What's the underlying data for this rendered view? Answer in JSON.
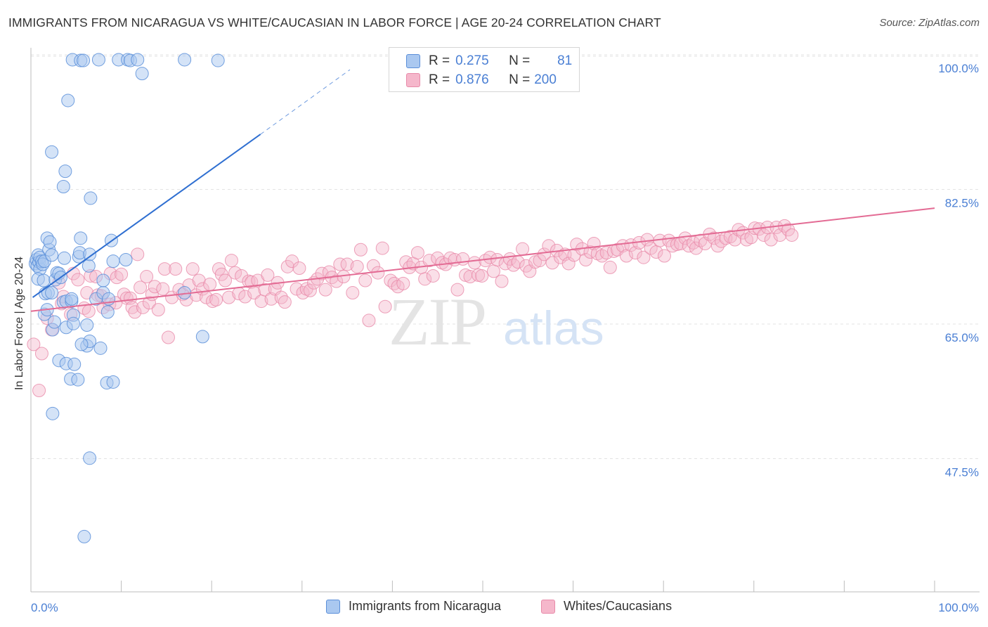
{
  "title": "IMMIGRANTS FROM NICARAGUA VS WHITE/CAUCASIAN IN LABOR FORCE | AGE 20-24 CORRELATION CHART",
  "source": "Source: ZipAtlas.com",
  "watermark": {
    "zip": "ZIP",
    "atlas": "atlas"
  },
  "legend_top": [
    {
      "r_label": "R =",
      "r_value": "0.275",
      "n_label": "N =",
      "n_value": "81"
    },
    {
      "r_label": "R =",
      "r_value": "0.876",
      "n_label": "N =",
      "n_value": "200"
    }
  ],
  "legend_bottom": [
    "Immigrants from Nicaragua",
    "Whites/Caucasians"
  ],
  "colors": {
    "blue_fill": "#aac8f0",
    "blue_stroke": "#5b8fd9",
    "blue_line": "#2f6fd1",
    "pink_fill": "#f5b7cb",
    "pink_stroke": "#e88aa9",
    "pink_line": "#e36b94",
    "tick_text": "#4a7fd4",
    "grid": "#e3e3e3"
  },
  "chart_data": {
    "type": "scatter",
    "title": "IMMIGRANTS FROM NICARAGUA VS WHITE/CAUCASIAN IN LABOR FORCE | AGE 20-24 CORRELATION CHART",
    "xlabel": "",
    "ylabel": "In Labor Force | Age 20-24",
    "xlim": [
      0,
      100
    ],
    "ylim": [
      30,
      102
    ],
    "x_ticks": [
      "0.0%",
      "100.0%"
    ],
    "y_ticks": [
      {
        "value": 100,
        "label": "100.0%"
      },
      {
        "value": 82.5,
        "label": "82.5%"
      },
      {
        "value": 65,
        "label": "65.0%"
      },
      {
        "value": 47.5,
        "label": "47.5%"
      }
    ],
    "grid": true,
    "series": [
      {
        "name": "Immigrants from Nicaragua",
        "r": 0.275,
        "n": 81,
        "trend": {
          "x0": 0.2,
          "y0": 70.2,
          "x1": 25.4,
          "y1": 91.4,
          "dash_to_x": 35.3,
          "dash_to_y": 99.8
        },
        "points": [
          [
            0.5,
            74.6
          ],
          [
            0.6,
            75.1
          ],
          [
            0.7,
            74.3
          ],
          [
            0.8,
            75.7
          ],
          [
            0.9,
            74.8
          ],
          [
            1.0,
            73.9
          ],
          [
            1.0,
            75.4
          ],
          [
            1.2,
            74.9
          ],
          [
            1.3,
            74.5
          ],
          [
            1.5,
            74.9
          ],
          [
            0.8,
            72.6
          ],
          [
            1.4,
            72.4
          ],
          [
            1.6,
            70.7
          ],
          [
            1.9,
            70.8
          ],
          [
            1.5,
            68.0
          ],
          [
            1.8,
            68.6
          ],
          [
            2.4,
            66.0
          ],
          [
            2.6,
            67.0
          ],
          [
            2.3,
            70.8
          ],
          [
            2.7,
            72.5
          ],
          [
            2.9,
            73.4
          ],
          [
            3.1,
            73.3
          ],
          [
            3.3,
            72.8
          ],
          [
            3.6,
            69.6
          ],
          [
            3.9,
            69.7
          ],
          [
            4.5,
            69.7
          ],
          [
            4.7,
            67.9
          ],
          [
            4.5,
            70.0
          ],
          [
            3.9,
            66.3
          ],
          [
            4.7,
            66.8
          ],
          [
            2.0,
            76.4
          ],
          [
            2.3,
            75.7
          ],
          [
            3.7,
            75.3
          ],
          [
            5.3,
            75.5
          ],
          [
            6.4,
            74.3
          ],
          [
            5.4,
            76.0
          ],
          [
            1.8,
            77.9
          ],
          [
            2.1,
            77.4
          ],
          [
            5.5,
            77.9
          ],
          [
            6.5,
            75.8
          ],
          [
            8.9,
            77.6
          ],
          [
            9.1,
            74.9
          ],
          [
            10.5,
            75.1
          ],
          [
            7.2,
            70.0
          ],
          [
            8.0,
            70.8
          ],
          [
            8.0,
            72.4
          ],
          [
            8.5,
            68.3
          ],
          [
            8.6,
            70.0
          ],
          [
            6.2,
            66.6
          ],
          [
            6.2,
            63.9
          ],
          [
            6.5,
            64.5
          ],
          [
            7.7,
            63.6
          ],
          [
            5.6,
            64.1
          ],
          [
            3.1,
            62.0
          ],
          [
            3.9,
            61.6
          ],
          [
            4.8,
            61.5
          ],
          [
            4.4,
            59.6
          ],
          [
            5.2,
            59.5
          ],
          [
            8.4,
            59.1
          ],
          [
            9.1,
            59.2
          ],
          [
            2.4,
            55.1
          ],
          [
            6.5,
            49.3
          ],
          [
            5.9,
            39.1
          ],
          [
            19.0,
            65.1
          ],
          [
            17.0,
            70.8
          ],
          [
            2.3,
            89.1
          ],
          [
            3.8,
            86.6
          ],
          [
            3.6,
            84.6
          ],
          [
            6.6,
            83.1
          ],
          [
            4.1,
            95.8
          ],
          [
            4.6,
            101.1
          ],
          [
            5.5,
            101.0
          ],
          [
            5.8,
            101.0
          ],
          [
            7.5,
            101.1
          ],
          [
            9.7,
            101.1
          ],
          [
            10.7,
            101.1
          ],
          [
            11.0,
            101.0
          ],
          [
            11.8,
            101.1
          ],
          [
            12.3,
            99.3
          ],
          [
            17.0,
            101.1
          ],
          [
            20.7,
            101.0
          ]
        ]
      },
      {
        "name": "Whites/Caucasians",
        "r": 0.876,
        "n": 200,
        "trend": {
          "x0": 0.0,
          "y0": 68.4,
          "x1": 100.0,
          "y1": 81.8
        },
        "points": [
          [
            0.3,
            64.1
          ],
          [
            0.9,
            58.1
          ],
          [
            1.2,
            62.9
          ],
          [
            1.8,
            67.5
          ],
          [
            2.3,
            66.0
          ],
          [
            3.1,
            72.1
          ],
          [
            3.4,
            69.4
          ],
          [
            3.6,
            70.3
          ],
          [
            4.4,
            68.0
          ],
          [
            4.7,
            73.3
          ],
          [
            5.2,
            72.5
          ],
          [
            5.9,
            68.8
          ],
          [
            6.2,
            70.8
          ],
          [
            6.4,
            68.4
          ],
          [
            6.6,
            73.0
          ],
          [
            7.2,
            72.9
          ],
          [
            7.4,
            70.5
          ],
          [
            7.8,
            70.4
          ],
          [
            8.0,
            68.9
          ],
          [
            8.7,
            69.3
          ],
          [
            8.8,
            73.3
          ],
          [
            9.4,
            69.5
          ],
          [
            9.5,
            72.8
          ],
          [
            10.0,
            73.2
          ],
          [
            10.3,
            70.6
          ],
          [
            10.6,
            70.1
          ],
          [
            11.0,
            70.1
          ],
          [
            11.2,
            68.9
          ],
          [
            11.5,
            68.3
          ],
          [
            11.8,
            75.8
          ],
          [
            12.1,
            71.5
          ],
          [
            12.4,
            68.9
          ],
          [
            12.8,
            72.9
          ],
          [
            13.1,
            69.5
          ],
          [
            13.4,
            70.6
          ],
          [
            13.7,
            71.6
          ],
          [
            14.1,
            68.6
          ],
          [
            14.6,
            71.3
          ],
          [
            14.8,
            73.9
          ],
          [
            15.2,
            65.0
          ],
          [
            15.6,
            70.2
          ],
          [
            16.0,
            73.9
          ],
          [
            16.4,
            71.2
          ],
          [
            16.8,
            70.6
          ],
          [
            17.2,
            69.9
          ],
          [
            17.5,
            71.8
          ],
          [
            17.9,
            73.9
          ],
          [
            18.3,
            70.5
          ],
          [
            18.6,
            72.4
          ],
          [
            19.0,
            71.3
          ],
          [
            19.4,
            70.2
          ],
          [
            19.8,
            71.9
          ],
          [
            20.1,
            69.7
          ],
          [
            20.5,
            69.9
          ],
          [
            20.8,
            73.9
          ],
          [
            21.1,
            73.2
          ],
          [
            21.5,
            72.4
          ],
          [
            21.9,
            70.2
          ],
          [
            22.2,
            75.0
          ],
          [
            22.6,
            73.4
          ],
          [
            23.0,
            70.7
          ],
          [
            23.3,
            73.0
          ],
          [
            23.7,
            70.3
          ],
          [
            24.1,
            72.3
          ],
          [
            24.4,
            72.2
          ],
          [
            24.7,
            70.8
          ],
          [
            25.1,
            72.4
          ],
          [
            25.5,
            69.7
          ],
          [
            25.9,
            71.2
          ],
          [
            26.2,
            73.1
          ],
          [
            26.6,
            70.0
          ],
          [
            27.0,
            71.3
          ],
          [
            27.3,
            72.1
          ],
          [
            27.7,
            70.2
          ],
          [
            28.1,
            69.6
          ],
          [
            28.4,
            74.2
          ],
          [
            28.9,
            74.9
          ],
          [
            29.4,
            71.3
          ],
          [
            29.7,
            74.0
          ],
          [
            30.1,
            70.8
          ],
          [
            30.5,
            71.3
          ],
          [
            30.9,
            71.1
          ],
          [
            31.3,
            72.1
          ],
          [
            31.7,
            72.6
          ],
          [
            32.2,
            73.3
          ],
          [
            32.6,
            71.2
          ],
          [
            33.0,
            73.5
          ],
          [
            33.3,
            72.8
          ],
          [
            33.8,
            72.3
          ],
          [
            34.2,
            74.5
          ],
          [
            34.6,
            72.9
          ],
          [
            35.0,
            74.5
          ],
          [
            35.6,
            70.8
          ],
          [
            36.1,
            74.2
          ],
          [
            36.5,
            76.4
          ],
          [
            37.0,
            72.4
          ],
          [
            37.4,
            67.2
          ],
          [
            37.9,
            74.3
          ],
          [
            38.4,
            73.4
          ],
          [
            38.9,
            76.6
          ],
          [
            39.2,
            69.0
          ],
          [
            39.8,
            72.4
          ],
          [
            40.2,
            72.0
          ],
          [
            40.6,
            71.6
          ],
          [
            41.2,
            72.0
          ],
          [
            41.5,
            74.8
          ],
          [
            41.9,
            74.1
          ],
          [
            42.3,
            74.6
          ],
          [
            42.8,
            76.0
          ],
          [
            43.2,
            74.1
          ],
          [
            43.6,
            72.6
          ],
          [
            44.1,
            75.0
          ],
          [
            44.5,
            73.0
          ],
          [
            45.0,
            75.3
          ],
          [
            45.5,
            74.7
          ],
          [
            45.9,
            74.5
          ],
          [
            46.4,
            75.3
          ],
          [
            46.9,
            75.1
          ],
          [
            47.2,
            71.2
          ],
          [
            47.8,
            75.2
          ],
          [
            48.1,
            73.1
          ],
          [
            48.6,
            72.9
          ],
          [
            49.1,
            74.7
          ],
          [
            49.5,
            73.1
          ],
          [
            49.9,
            73.0
          ],
          [
            50.3,
            75.0
          ],
          [
            50.8,
            75.4
          ],
          [
            51.2,
            73.6
          ],
          [
            51.6,
            75.1
          ],
          [
            52.1,
            72.3
          ],
          [
            52.5,
            74.6
          ],
          [
            53.0,
            75.2
          ],
          [
            53.4,
            74.4
          ],
          [
            53.9,
            74.8
          ],
          [
            54.4,
            76.5
          ],
          [
            54.8,
            74.3
          ],
          [
            55.2,
            73.6
          ],
          [
            55.8,
            74.8
          ],
          [
            56.3,
            75.0
          ],
          [
            56.8,
            75.8
          ],
          [
            57.3,
            76.9
          ],
          [
            57.7,
            74.7
          ],
          [
            58.2,
            76.3
          ],
          [
            58.6,
            75.4
          ],
          [
            59.1,
            75.8
          ],
          [
            59.5,
            74.6
          ],
          [
            60.1,
            75.7
          ],
          [
            60.4,
            77.1
          ],
          [
            61.0,
            76.5
          ],
          [
            61.4,
            75.1
          ],
          [
            61.9,
            76.1
          ],
          [
            62.3,
            77.2
          ],
          [
            62.7,
            75.9
          ],
          [
            63.2,
            75.6
          ],
          [
            63.7,
            76.0
          ],
          [
            64.1,
            74.1
          ],
          [
            64.5,
            76.2
          ],
          [
            64.9,
            76.4
          ],
          [
            65.5,
            76.9
          ],
          [
            65.9,
            75.6
          ],
          [
            66.4,
            77.0
          ],
          [
            66.9,
            76.0
          ],
          [
            67.3,
            77.3
          ],
          [
            67.8,
            75.4
          ],
          [
            68.2,
            77.7
          ],
          [
            68.6,
            76.6
          ],
          [
            69.2,
            76.1
          ],
          [
            69.6,
            77.6
          ],
          [
            70.1,
            75.6
          ],
          [
            70.6,
            77.6
          ],
          [
            71.0,
            76.9
          ],
          [
            71.5,
            77.1
          ],
          [
            71.9,
            77.2
          ],
          [
            72.4,
            77.9
          ],
          [
            72.8,
            76.9
          ],
          [
            73.3,
            77.3
          ],
          [
            73.6,
            76.6
          ],
          [
            74.1,
            77.6
          ],
          [
            74.6,
            77.2
          ],
          [
            75.1,
            78.4
          ],
          [
            75.6,
            77.9
          ],
          [
            76.0,
            76.9
          ],
          [
            76.4,
            77.5
          ],
          [
            76.9,
            77.9
          ],
          [
            77.4,
            78.1
          ],
          [
            77.9,
            77.7
          ],
          [
            78.3,
            79.0
          ],
          [
            78.8,
            78.6
          ],
          [
            79.2,
            77.7
          ],
          [
            79.7,
            78.0
          ],
          [
            80.1,
            79.2
          ],
          [
            80.6,
            79.1
          ],
          [
            81.1,
            78.3
          ],
          [
            81.5,
            79.3
          ],
          [
            81.9,
            77.7
          ],
          [
            82.5,
            79.3
          ],
          [
            82.9,
            78.3
          ],
          [
            83.4,
            79.5
          ],
          [
            83.8,
            79.0
          ],
          [
            84.2,
            78.3
          ]
        ]
      }
    ]
  }
}
